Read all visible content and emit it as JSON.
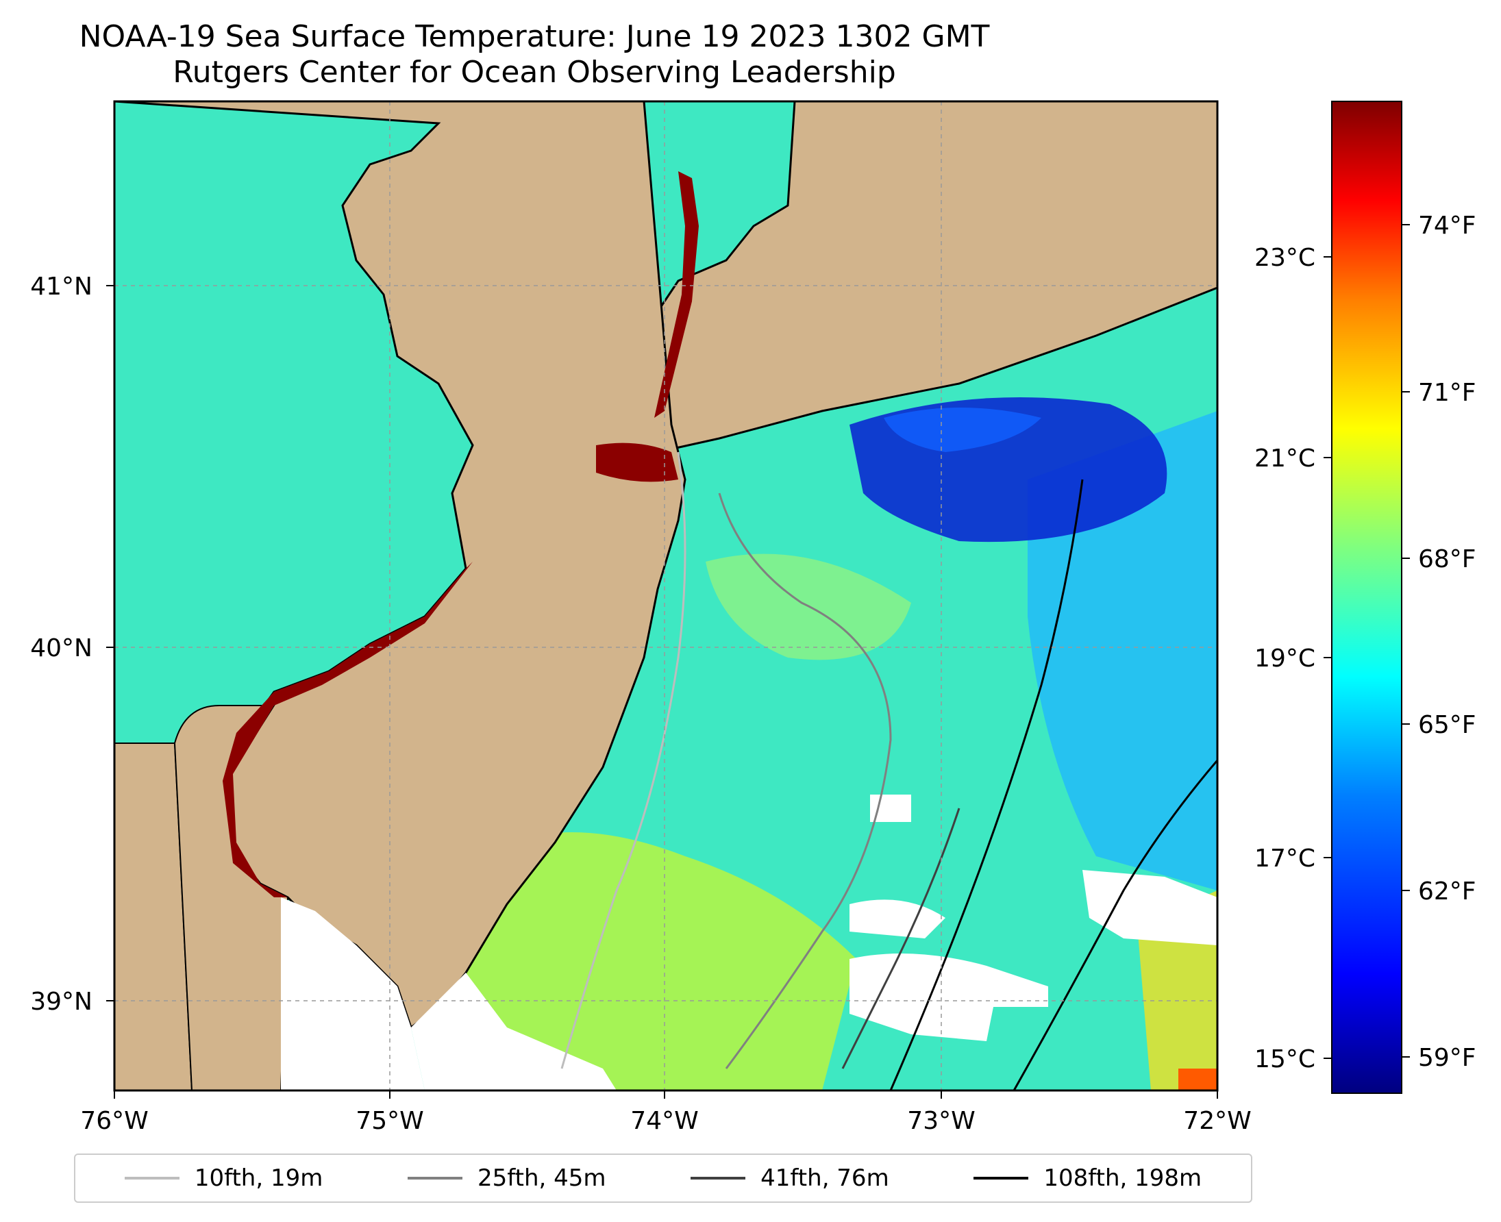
{
  "title": {
    "line1": "NOAA-19 Sea Surface Temperature: June 19 2023 1302 GMT",
    "line2": "Rutgers Center for Ocean Observing Leadership"
  },
  "axes": {
    "x_ticks": [
      "76°W",
      "75°W",
      "74°W",
      "73°W",
      "72°W"
    ],
    "y_ticks": [
      "41°N",
      "40°N",
      "39°N"
    ]
  },
  "colorbar": {
    "celsius_ticks": [
      "23°C",
      "21°C",
      "19°C",
      "17°C",
      "15°C"
    ],
    "fahrenheit_ticks": [
      "74°F",
      "71°F",
      "68°F",
      "65°F",
      "62°F",
      "59°F"
    ],
    "colors": [
      "#00007f",
      "#0000ff",
      "#007fff",
      "#00ffff",
      "#7fff7f",
      "#ffff00",
      "#ff7f00",
      "#ff0000",
      "#7f0000"
    ]
  },
  "legend": [
    {
      "label": "10fth, 19m",
      "color": "#bdbdbd"
    },
    {
      "label": "25fth, 45m",
      "color": "#808080"
    },
    {
      "label": "41fth, 76m",
      "color": "#404040"
    },
    {
      "label": "108fth, 198m",
      "color": "#000000"
    }
  ],
  "colors": {
    "land": "#d2b48c",
    "ocean_base": "#33e6c8"
  }
}
